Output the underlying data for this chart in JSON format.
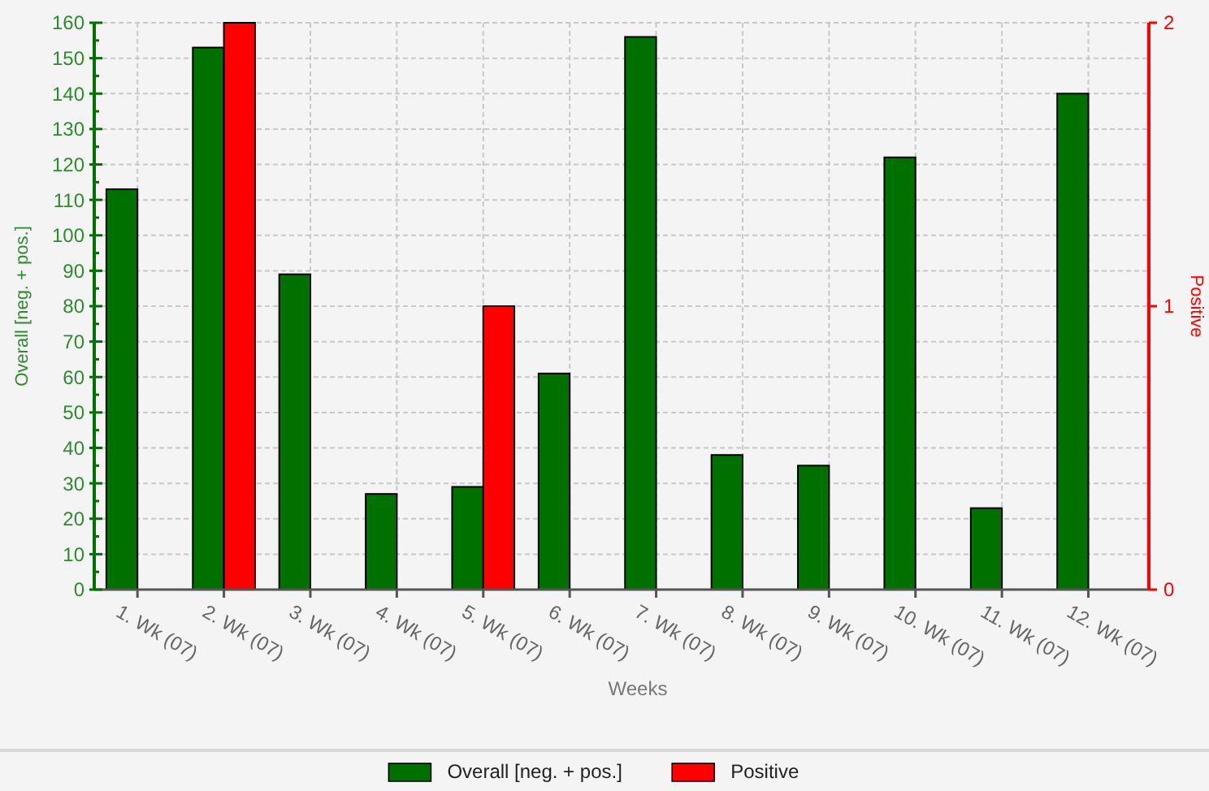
{
  "chart_data": {
    "type": "bar",
    "xlabel": "Weeks",
    "ylabel": "Overall [neg. + pos.]",
    "y2label": "Positive",
    "categories": [
      "1. Wk (07)",
      "2. Wk (07)",
      "3. Wk (07)",
      "4. Wk (07)",
      "5. Wk (07)",
      "6. Wk (07)",
      "7. Wk (07)",
      "8. Wk (07)",
      "9. Wk (07)",
      "10. Wk (07)",
      "11. Wk (07)",
      "12. Wk (07)"
    ],
    "series": [
      {
        "name": "Overall [neg. + pos.]",
        "color": "#007000",
        "values": [
          113,
          153,
          89,
          27,
          29,
          61,
          156,
          38,
          35,
          122,
          23,
          140
        ]
      },
      {
        "name": "Positive",
        "color": "#ff0000",
        "axis": "y2",
        "values": [
          null,
          2,
          null,
          null,
          1,
          null,
          null,
          null,
          null,
          null,
          null,
          null
        ]
      }
    ],
    "ylim": [
      0,
      160
    ],
    "yticks": [
      0,
      10,
      20,
      30,
      40,
      50,
      60,
      70,
      80,
      90,
      100,
      110,
      120,
      130,
      140,
      150,
      160
    ],
    "y2lim": [
      0,
      2
    ],
    "y2ticks": [
      0,
      1,
      2
    ],
    "grid": true,
    "legend": "bottom"
  }
}
